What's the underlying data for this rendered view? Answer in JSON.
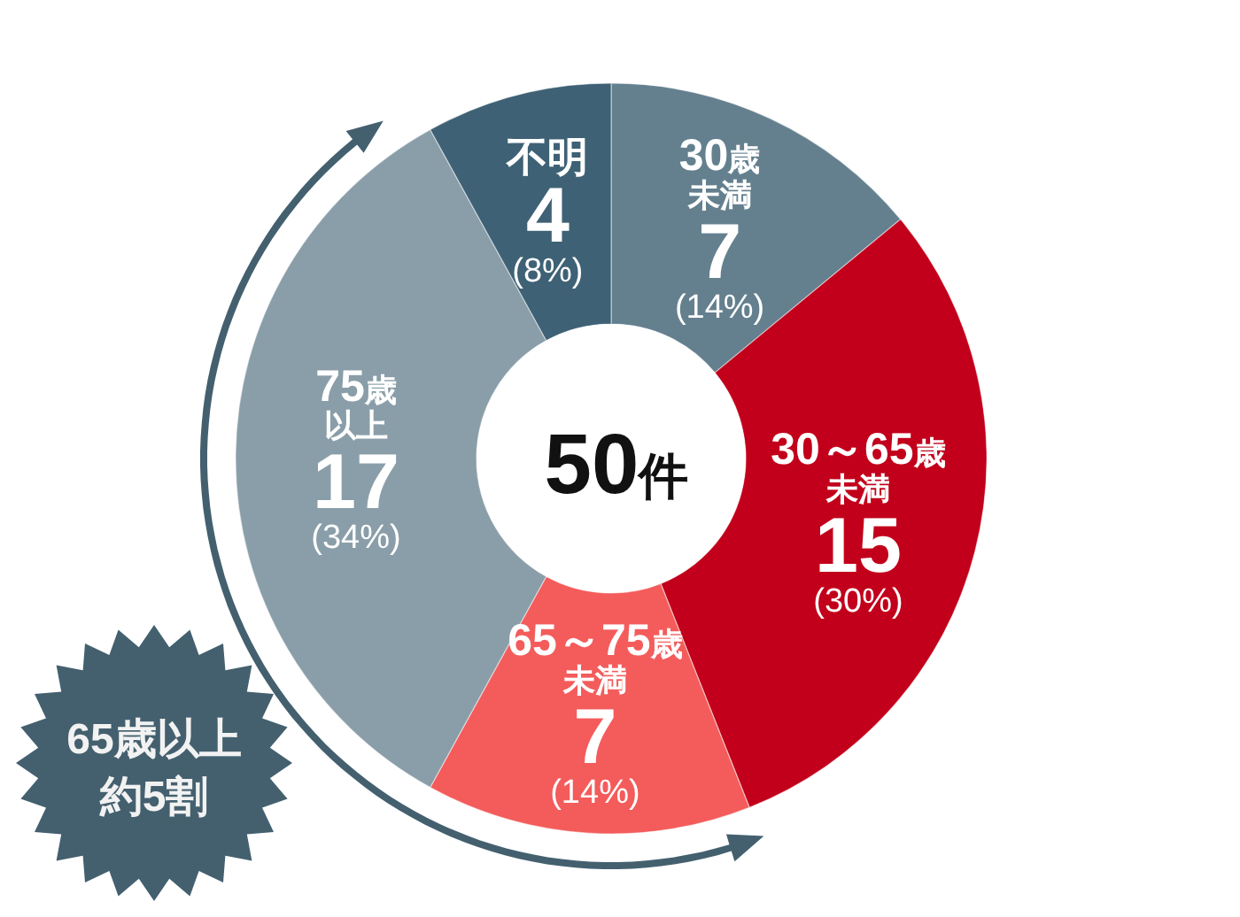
{
  "chart_data": {
    "type": "donut",
    "categories": [
      "30歳未満",
      "30～65歳未満",
      "65～75歳未満",
      "75歳以上",
      "不明"
    ],
    "values": [
      7,
      15,
      7,
      17,
      4
    ],
    "colors": [
      "#64808f",
      "#c2001b",
      "#f35c5b",
      "#8a9ea9",
      "#3e6175"
    ],
    "value_labels": [
      "7\n(14%)",
      "15\n(30%)",
      "7\n(14%)",
      "17\n(34%)",
      "4\n(8%)"
    ],
    "annotations": [
      "50件",
      "65歳以上約5割"
    ]
  }
}
